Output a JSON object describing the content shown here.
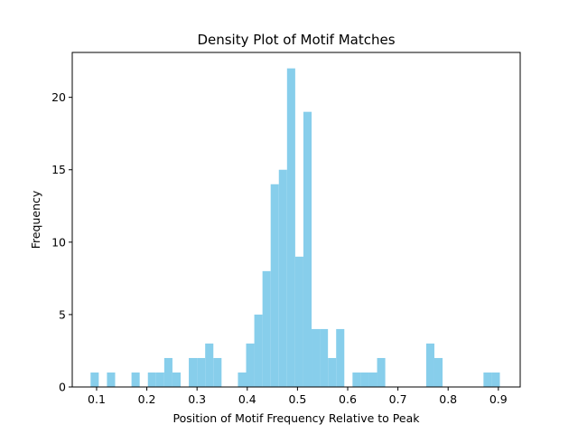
{
  "chart_data": {
    "type": "bar",
    "title": "Density Plot of Motif Matches",
    "xlabel": "Position of Motif Frequency Relative to Peak",
    "ylabel": "Frequency",
    "xlim": [
      0.0515,
      0.9435
    ],
    "ylim": [
      0,
      23.1
    ],
    "xticks": [
      0.1,
      0.2,
      0.3,
      0.4,
      0.5,
      0.6,
      0.7,
      0.8,
      0.9
    ],
    "xtick_labels": [
      "0.1",
      "0.2",
      "0.3",
      "0.4",
      "0.5",
      "0.6",
      "0.7",
      "0.8",
      "0.9"
    ],
    "yticks": [
      0,
      5,
      10,
      15,
      20
    ],
    "ytick_labels": [
      "0",
      "5",
      "10",
      "15",
      "20"
    ],
    "bar_color": "#87ceeb",
    "grid": false,
    "bin_start": 0.088,
    "bin_width": 0.0163,
    "values": [
      1,
      0,
      1,
      0,
      0,
      1,
      0,
      1,
      1,
      2,
      1,
      0,
      2,
      2,
      3,
      2,
      0,
      0,
      1,
      3,
      5,
      8,
      14,
      15,
      22,
      9,
      19,
      4,
      4,
      2,
      4,
      0,
      1,
      1,
      1,
      2,
      0,
      0,
      0,
      0,
      0,
      3,
      2,
      0,
      0,
      0,
      0,
      0,
      1,
      1
    ]
  }
}
